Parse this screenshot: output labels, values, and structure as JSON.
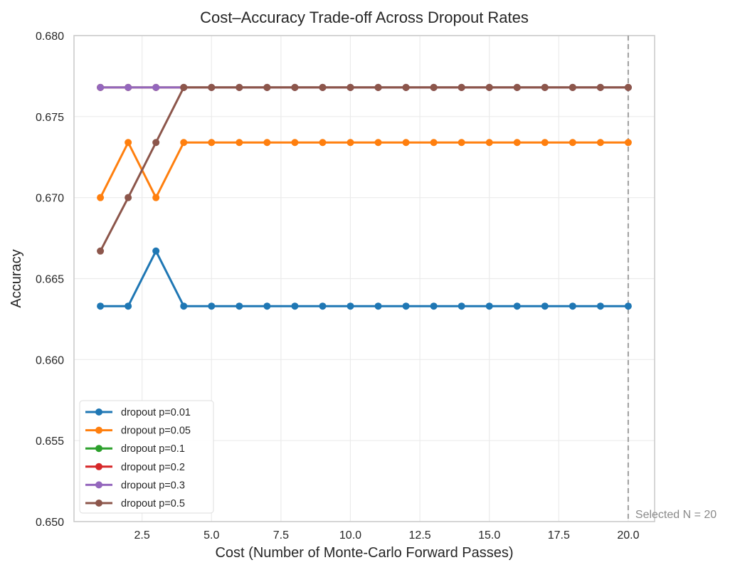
{
  "chart_data": {
    "type": "line",
    "title": "Cost–Accuracy Trade-off Across Dropout Rates",
    "xlabel": "Cost (Number of Monte-Carlo Forward Passes)",
    "ylabel": "Accuracy",
    "xlim": [
      0.05,
      20.95
    ],
    "ylim": [
      0.65,
      0.68
    ],
    "xticks": [
      2.5,
      5.0,
      7.5,
      10.0,
      12.5,
      15.0,
      17.5,
      20.0
    ],
    "xtick_labels": [
      "2.5",
      "5.0",
      "7.5",
      "10.0",
      "12.5",
      "15.0",
      "17.5",
      "20.0"
    ],
    "yticks": [
      0.65,
      0.655,
      0.66,
      0.665,
      0.67,
      0.675,
      0.68
    ],
    "ytick_labels": [
      "0.650",
      "0.655",
      "0.660",
      "0.665",
      "0.670",
      "0.675",
      "0.680"
    ],
    "grid": true,
    "legend_position": "lower-left",
    "x": [
      1,
      2,
      3,
      4,
      5,
      6,
      7,
      8,
      9,
      10,
      11,
      12,
      13,
      14,
      15,
      16,
      17,
      18,
      19,
      20
    ],
    "series": [
      {
        "name": "dropout p=0.01",
        "color": "#1f77b4",
        "values": [
          0.6633,
          0.6633,
          0.6667,
          0.6633,
          0.6633,
          0.6633,
          0.6633,
          0.6633,
          0.6633,
          0.6633,
          0.6633,
          0.6633,
          0.6633,
          0.6633,
          0.6633,
          0.6633,
          0.6633,
          0.6633,
          0.6633,
          0.6633
        ]
      },
      {
        "name": "dropout p=0.05",
        "color": "#ff7f0e",
        "values": [
          0.67,
          0.6734,
          0.67,
          0.6734,
          0.6734,
          0.6734,
          0.6734,
          0.6734,
          0.6734,
          0.6734,
          0.6734,
          0.6734,
          0.6734,
          0.6734,
          0.6734,
          0.6734,
          0.6734,
          0.6734,
          0.6734,
          0.6734
        ]
      },
      {
        "name": "dropout p=0.1",
        "color": "#2ca02c",
        "values": [
          0.6768,
          0.6768,
          0.6768,
          0.6768,
          0.6768,
          0.6768,
          0.6768,
          0.6768,
          0.6768,
          0.6768,
          0.6768,
          0.6768,
          0.6768,
          0.6768,
          0.6768,
          0.6768,
          0.6768,
          0.6768,
          0.6768,
          0.6768
        ]
      },
      {
        "name": "dropout p=0.2",
        "color": "#d62728",
        "values": [
          0.6768,
          0.6768,
          0.6768,
          0.6768,
          0.6768,
          0.6768,
          0.6768,
          0.6768,
          0.6768,
          0.6768,
          0.6768,
          0.6768,
          0.6768,
          0.6768,
          0.6768,
          0.6768,
          0.6768,
          0.6768,
          0.6768,
          0.6768
        ]
      },
      {
        "name": "dropout p=0.3",
        "color": "#9467bd",
        "values": [
          0.6768,
          0.6768,
          0.6768,
          0.6768,
          0.6768,
          0.6768,
          0.6768,
          0.6768,
          0.6768,
          0.6768,
          0.6768,
          0.6768,
          0.6768,
          0.6768,
          0.6768,
          0.6768,
          0.6768,
          0.6768,
          0.6768,
          0.6768
        ]
      },
      {
        "name": "dropout p=0.5",
        "color": "#8c564b",
        "values": [
          0.6667,
          0.67,
          0.6734,
          0.6768,
          0.6768,
          0.6768,
          0.6768,
          0.6768,
          0.6768,
          0.6768,
          0.6768,
          0.6768,
          0.6768,
          0.6768,
          0.6768,
          0.6768,
          0.6768,
          0.6768,
          0.6768,
          0.6768
        ]
      }
    ],
    "vline": {
      "x": 20,
      "color": "#a0a0a0",
      "style": "dashed"
    },
    "annotation": {
      "text": "Selected N = 20",
      "x": 20,
      "color": "#8a8a8a"
    }
  }
}
